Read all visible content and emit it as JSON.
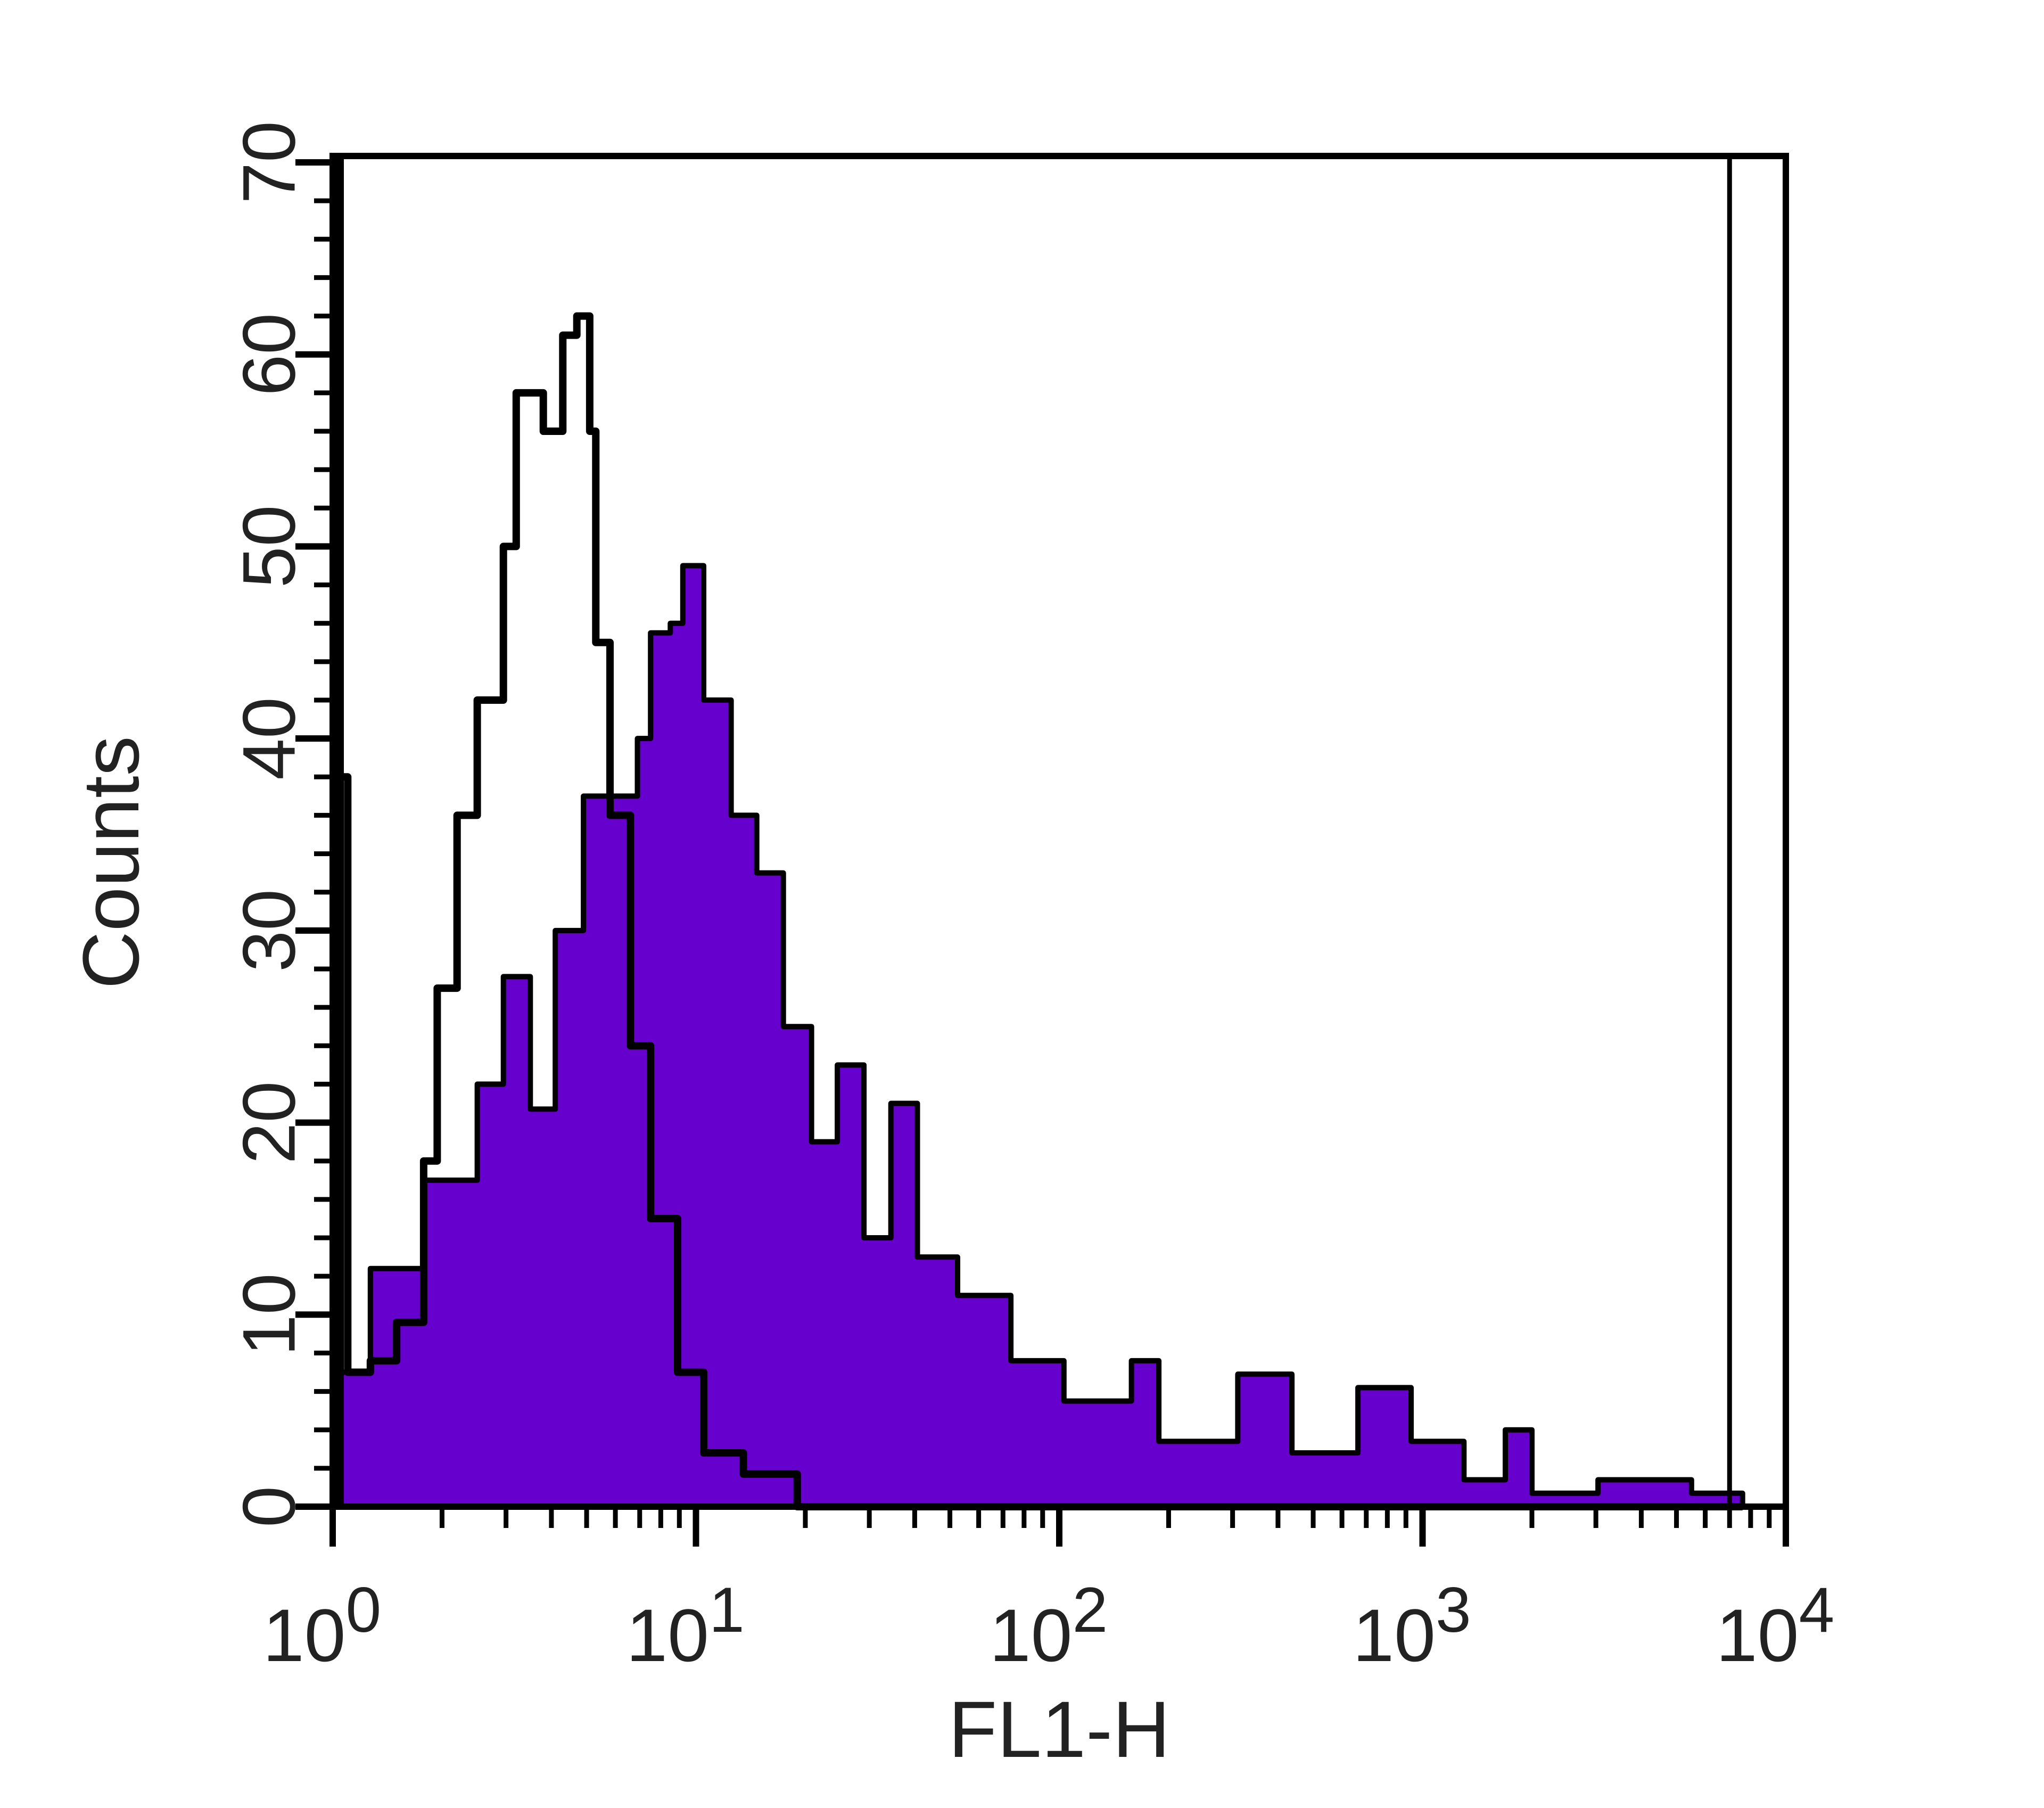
{
  "chart_data": {
    "type": "area",
    "title": "",
    "xlabel": "FL1-H",
    "ylabel": "Counts",
    "x_scale": "log",
    "xlim": [
      1,
      10000
    ],
    "ylim": [
      0,
      70
    ],
    "x_ticks": [
      {
        "base": "10",
        "exp": "0"
      },
      {
        "base": "10",
        "exp": "1"
      },
      {
        "base": "10",
        "exp": "2"
      },
      {
        "base": "10",
        "exp": "3"
      },
      {
        "base": "10",
        "exp": "4"
      }
    ],
    "y_ticks": [
      "0",
      "10",
      "20",
      "30",
      "40",
      "50",
      "60",
      "70"
    ],
    "y_tick_values": [
      0,
      10,
      20,
      30,
      40,
      50,
      60,
      70
    ],
    "grid": false,
    "marker_line_x": 7000,
    "colors": {
      "filled": "#6600cc",
      "outline": "#000000"
    },
    "series": [
      {
        "style": "filled",
        "x": [
          1,
          1.05,
          1.27,
          1.78,
          2.5,
          2.95,
          3.5,
          4.1,
          4.9,
          5.8,
          6.9,
          7.5,
          8.5,
          9.2,
          10.5,
          12.5,
          14.7,
          17.4,
          20.8,
          24.5,
          29,
          34.4,
          40.7,
          52.5,
          73.6,
          103,
          158,
          188,
          310,
          437,
          664,
          930,
          1300,
          1690,
          2000,
          3040,
          5500,
          7600
        ],
        "y": [
          0,
          7,
          12.4,
          17,
          22,
          27.6,
          20.7,
          30,
          37,
          37,
          40,
          45.5,
          46,
          49,
          42,
          36,
          33,
          25,
          19,
          23,
          14,
          21,
          13,
          11,
          7.6,
          5.5,
          7.6,
          3.4,
          6.9,
          2.8,
          6.2,
          3.4,
          1.4,
          4,
          0.7,
          1.4,
          0.7,
          0
        ]
      },
      {
        "style": "outline",
        "x": [
          1,
          1.03,
          1.1,
          1.27,
          1.5,
          1.78,
          1.94,
          2.2,
          2.5,
          2.95,
          3.2,
          3.8,
          4.3,
          4.7,
          5.1,
          5.3,
          5.8,
          6.6,
          7.5,
          8.9,
          10.5,
          13.5,
          19,
          7600
        ],
        "y": [
          70,
          38,
          7,
          7.6,
          9.6,
          18,
          27,
          36,
          42,
          50,
          58,
          56,
          61,
          62,
          56,
          45,
          36,
          24,
          15,
          7,
          2.8,
          1.7,
          0,
          0
        ]
      }
    ]
  }
}
